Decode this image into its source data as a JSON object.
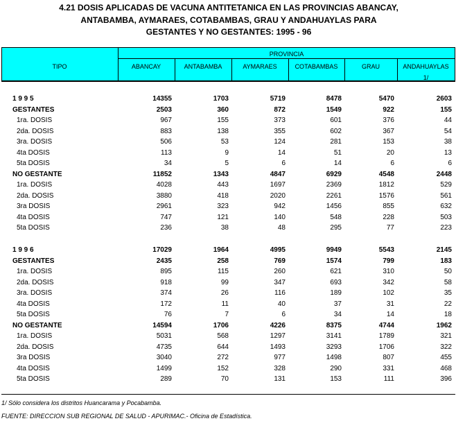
{
  "title": [
    "4.21  DOSIS APLICADAS DE VACUNA ANTITETANICA EN LAS PROVINCIAS ABANCAY,",
    "ANTABAMBA, AYMARAES, COTABAMBAS, GRAU Y ANDAHUAYLAS PARA",
    "GESTANTES Y NO GESTANTES: 1995 - 96"
  ],
  "header": {
    "tipo": "TIPO",
    "provincia": "PROVINCIA",
    "columns": [
      "ABANCAY",
      "ANTABAMBA",
      "AYMARAES",
      "COTABAMBAS",
      "GRAU",
      "ANDAHUAYLAS"
    ],
    "andahuaylas_note": "1/"
  },
  "header_color": "#00ffff",
  "sections": [
    {
      "rows": [
        {
          "label": "1 9 9 5",
          "type": "bold",
          "values": [
            14355,
            1703,
            5719,
            8478,
            5470,
            2603
          ]
        },
        {
          "label": "GESTANTES",
          "type": "bold",
          "values": [
            2503,
            360,
            872,
            1549,
            922,
            155
          ]
        },
        {
          "label": "1ra. DOSIS",
          "type": "sub",
          "values": [
            967,
            155,
            373,
            601,
            376,
            44
          ]
        },
        {
          "label": "2da. DOSIS",
          "type": "sub",
          "values": [
            883,
            138,
            355,
            602,
            367,
            54
          ]
        },
        {
          "label": "3ra. DOSIS",
          "type": "sub",
          "values": [
            506,
            53,
            124,
            281,
            153,
            38
          ]
        },
        {
          "label": "4ta DOSIS",
          "type": "sub",
          "values": [
            113,
            9,
            14,
            51,
            20,
            13
          ]
        },
        {
          "label": "5ta DOSIS",
          "type": "sub",
          "values": [
            34,
            5,
            6,
            14,
            6,
            6
          ]
        },
        {
          "label": "NO GESTANTE",
          "type": "bold",
          "values": [
            11852,
            1343,
            4847,
            6929,
            4548,
            2448
          ]
        },
        {
          "label": "1ra. DOSIS",
          "type": "sub",
          "values": [
            4028,
            443,
            1697,
            2369,
            1812,
            529
          ]
        },
        {
          "label": "2da. DOSIS",
          "type": "sub",
          "values": [
            3880,
            418,
            2020,
            2261,
            1576,
            561
          ]
        },
        {
          "label": "3ra DOSIS",
          "type": "sub",
          "values": [
            2961,
            323,
            942,
            1456,
            855,
            632
          ]
        },
        {
          "label": "4ta DOSIS",
          "type": "sub",
          "values": [
            747,
            121,
            140,
            548,
            228,
            503
          ]
        },
        {
          "label": "5ta DOSIS",
          "type": "sub",
          "values": [
            236,
            38,
            48,
            295,
            77,
            223
          ]
        }
      ]
    },
    {
      "rows": [
        {
          "label": "1 9 9 6",
          "type": "bold",
          "values": [
            17029,
            1964,
            4995,
            9949,
            5543,
            2145
          ]
        },
        {
          "label": "GESTANTES",
          "type": "bold",
          "values": [
            2435,
            258,
            769,
            1574,
            799,
            183
          ]
        },
        {
          "label": "1ra. DOSIS",
          "type": "sub",
          "values": [
            895,
            115,
            260,
            621,
            310,
            50
          ]
        },
        {
          "label": "2da. DOSIS",
          "type": "sub",
          "values": [
            918,
            99,
            347,
            693,
            342,
            58
          ]
        },
        {
          "label": "3ra. DOSIS",
          "type": "sub",
          "values": [
            374,
            26,
            116,
            189,
            102,
            35
          ]
        },
        {
          "label": "4ta DOSIS",
          "type": "sub",
          "values": [
            172,
            11,
            40,
            37,
            31,
            22
          ]
        },
        {
          "label": "5ta DOSIS",
          "type": "sub",
          "values": [
            76,
            7,
            6,
            34,
            14,
            18
          ]
        },
        {
          "label": "NO GESTANTE",
          "type": "bold",
          "values": [
            14594,
            1706,
            4226,
            8375,
            4744,
            1962
          ]
        },
        {
          "label": "1ra. DOSIS",
          "type": "sub",
          "values": [
            5031,
            568,
            1297,
            3141,
            1789,
            321
          ]
        },
        {
          "label": "2da. DOSIS",
          "type": "sub",
          "values": [
            4735,
            644,
            1493,
            3293,
            1706,
            322
          ]
        },
        {
          "label": "3ra DOSIS",
          "type": "sub",
          "values": [
            3040,
            272,
            977,
            1498,
            807,
            455
          ]
        },
        {
          "label": "4ta DOSIS",
          "type": "sub",
          "values": [
            1499,
            152,
            328,
            290,
            331,
            468
          ]
        },
        {
          "label": "5ta DOSIS",
          "type": "sub",
          "values": [
            289,
            70,
            131,
            153,
            111,
            396
          ]
        }
      ]
    }
  ],
  "footnote": "1/ Sólo considera los distritos Huancarama y Pocabamba.",
  "source": "FUENTE: DIRECCION SUB REGIONAL DE SALUD - APURIMAC.- Oficina de Estadística."
}
